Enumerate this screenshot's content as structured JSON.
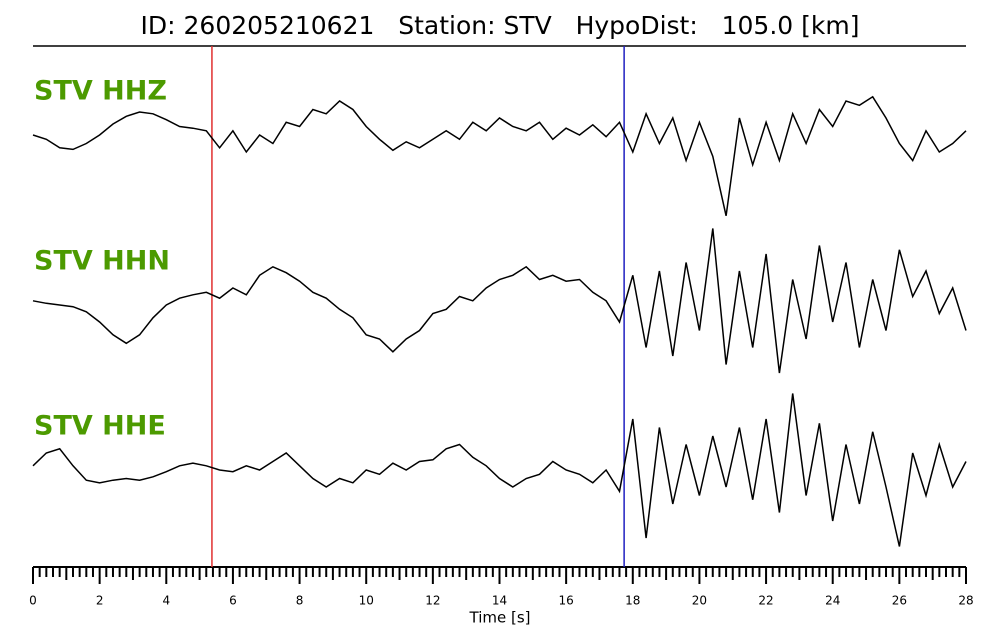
{
  "chart_data": {
    "type": "line",
    "title": "ID: 260205210621   Station: STV   HypoDist:   105.0 [km]",
    "xlabel": "Time [s]",
    "xlim": [
      0,
      28
    ],
    "xticks": [
      0,
      2,
      4,
      6,
      8,
      10,
      12,
      14,
      16,
      18,
      20,
      22,
      24,
      26,
      28
    ],
    "xminor_step": 0.2,
    "ylim": [
      -1,
      1
    ],
    "label_color": "#4c9a00",
    "x": [
      0,
      0.4,
      0.8,
      1.2,
      1.6,
      2,
      2.4,
      2.8,
      3.2,
      3.6,
      4,
      4.4,
      4.8,
      5.2,
      5.6,
      6,
      6.4,
      6.8,
      7.2,
      7.6,
      8,
      8.4,
      8.8,
      9.2,
      9.6,
      10,
      10.4,
      10.8,
      11.2,
      11.6,
      12,
      12.4,
      12.8,
      13.2,
      13.6,
      14,
      14.4,
      14.8,
      15.2,
      15.6,
      16,
      16.4,
      16.8,
      17.2,
      17.6,
      18,
      18.4,
      18.8,
      19.2,
      19.6,
      20,
      20.4,
      20.8,
      21.2,
      21.6,
      22,
      22.4,
      22.8,
      23.2,
      23.6,
      24,
      24.4,
      24.8,
      25.2,
      25.6,
      26,
      26.4,
      26.8,
      27.2,
      27.6,
      28
    ],
    "markers": [
      {
        "x": 5.37,
        "color": "#e03030"
      },
      {
        "x": 17.74,
        "color": "#2020c0"
      }
    ],
    "series": [
      {
        "name": "STV HHZ",
        "color": "#000000",
        "values": [
          0,
          -0.05,
          -0.15,
          -0.17,
          -0.1,
          0,
          0.13,
          0.22,
          0.27,
          0.25,
          0.18,
          0.1,
          0.08,
          0.05,
          -0.15,
          0.05,
          -0.2,
          0,
          -0.1,
          0.15,
          0.1,
          0.3,
          0.25,
          0.4,
          0.3,
          0.1,
          -0.05,
          -0.18,
          -0.08,
          -0.15,
          -0.05,
          0.05,
          -0.05,
          0.15,
          0.05,
          0.2,
          0.1,
          0.05,
          0.15,
          -0.05,
          0.08,
          0,
          0.12,
          -0.02,
          0.15,
          -0.2,
          0.25,
          -0.1,
          0.2,
          -0.3,
          0.15,
          -0.25,
          -0.95,
          0.2,
          -0.35,
          0.15,
          -0.3,
          0.25,
          -0.1,
          0.3,
          0.1,
          0.4,
          0.35,
          0.45,
          0.2,
          -0.1,
          -0.3,
          0.05,
          -0.2,
          -0.1,
          0.05
        ]
      },
      {
        "name": "STV HHN",
        "color": "#000000",
        "values": [
          0.05,
          0.02,
          0,
          -0.02,
          -0.08,
          -0.2,
          -0.35,
          -0.45,
          -0.35,
          -0.15,
          0,
          0.08,
          0.12,
          0.15,
          0.08,
          0.2,
          0.12,
          0.35,
          0.45,
          0.38,
          0.28,
          0.15,
          0.08,
          -0.05,
          -0.15,
          -0.35,
          -0.4,
          -0.55,
          -0.4,
          -0.3,
          -0.1,
          -0.05,
          0.1,
          0.05,
          0.2,
          0.3,
          0.35,
          0.45,
          0.3,
          0.35,
          0.28,
          0.3,
          0.15,
          0.05,
          -0.2,
          0.35,
          -0.5,
          0.4,
          -0.6,
          0.5,
          -0.3,
          0.9,
          -0.7,
          0.4,
          -0.5,
          0.6,
          -0.8,
          0.3,
          -0.4,
          0.7,
          -0.2,
          0.5,
          -0.5,
          0.3,
          -0.3,
          0.65,
          0.1,
          0.4,
          -0.1,
          0.2,
          -0.3
        ]
      },
      {
        "name": "STV HHE",
        "color": "#000000",
        "values": [
          0.05,
          0.2,
          0.25,
          0.05,
          -0.12,
          -0.15,
          -0.12,
          -0.1,
          -0.12,
          -0.08,
          -0.02,
          0.05,
          0.08,
          0.05,
          0,
          -0.02,
          0.05,
          0,
          0.1,
          0.2,
          0.05,
          -0.1,
          -0.2,
          -0.1,
          -0.15,
          0,
          -0.05,
          0.08,
          0,
          0.1,
          0.12,
          0.25,
          0.3,
          0.15,
          0.05,
          -0.1,
          -0.2,
          -0.1,
          -0.05,
          0.1,
          0,
          -0.05,
          -0.15,
          0,
          -0.25,
          0.6,
          -0.8,
          0.5,
          -0.4,
          0.3,
          -0.3,
          0.4,
          -0.2,
          0.5,
          -0.35,
          0.6,
          -0.5,
          0.9,
          -0.3,
          0.55,
          -0.6,
          0.3,
          -0.4,
          0.45,
          -0.2,
          -0.9,
          0.2,
          -0.3,
          0.3,
          -0.2,
          0.1
        ]
      }
    ]
  }
}
